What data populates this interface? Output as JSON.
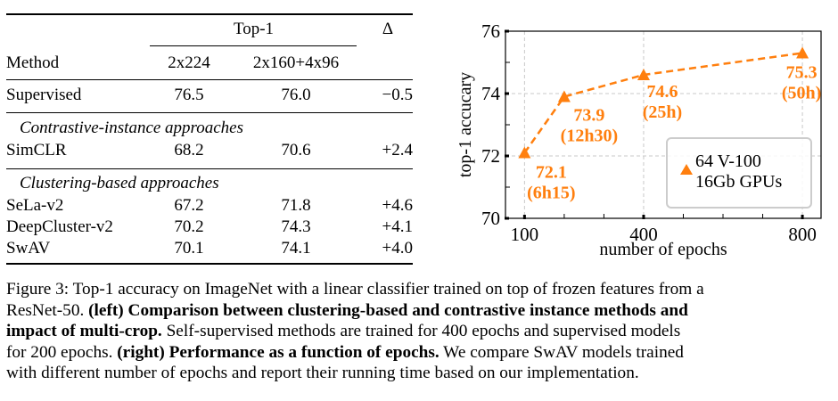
{
  "table": {
    "header_group": "Top-1",
    "delta_header": "Δ",
    "columns": [
      "Method",
      "2x224",
      "2x160+4x96"
    ],
    "supervised": {
      "method": "Supervised",
      "v1": "76.5",
      "v2": "76.0",
      "delta": "−0.5"
    },
    "sections": [
      {
        "title": "Contrastive-instance approaches",
        "rows": [
          {
            "method": "SimCLR",
            "v1": "68.2",
            "v2": "70.6",
            "delta": "+2.4"
          }
        ]
      },
      {
        "title": "Clustering-based approaches",
        "rows": [
          {
            "method": "SeLa-v2",
            "v1": "67.2",
            "v2": "71.8",
            "delta": "+4.6"
          },
          {
            "method": "DeepCluster-v2",
            "v1": "70.2",
            "v2": "74.3",
            "delta": "+4.1"
          },
          {
            "method": "SwAV",
            "v1": "70.1",
            "v2": "74.1",
            "delta": "+4.0"
          }
        ]
      }
    ]
  },
  "chart_data": {
    "type": "line",
    "title": "",
    "xlabel": "number of epochs",
    "ylabel": "top-1 accucary",
    "x": [
      100,
      200,
      400,
      800
    ],
    "series": [
      {
        "name": "64 V-100 16Gb GPUs",
        "legend_lines": [
          "64 V-100",
          "16Gb GPUs"
        ],
        "values": [
          72.1,
          73.9,
          74.6,
          75.3
        ],
        "annotations": [
          [
            "72.1",
            "(6h15)"
          ],
          [
            "73.9",
            "(12h30)"
          ],
          [
            "74.6",
            "(25h)"
          ],
          [
            "75.3",
            "(50h)"
          ]
        ],
        "color": "#ff7f0e",
        "marker": "triangle",
        "linestyle": "dashed"
      }
    ],
    "xticks": [
      100,
      400,
      800
    ],
    "xtick_labels": [
      "100",
      "400",
      "800"
    ],
    "xminor": [
      200,
      300,
      500,
      600,
      700
    ],
    "yticks": [
      70,
      72,
      74,
      76
    ],
    "ytick_labels": [
      "70",
      "72",
      "74",
      "76"
    ],
    "yminor": [
      71,
      73,
      75
    ],
    "xlim": [
      52,
      847
    ],
    "ylim": [
      70,
      76
    ],
    "grid": true,
    "legend_position": "lower-right"
  },
  "caption": {
    "line1": "Figure 3: Top-1 accuracy on ImageNet with a linear classifier trained on top of frozen features from a",
    "line2_a": "ResNet-50. ",
    "line2_b": "(left) Comparison between clustering-based and contrastive instance methods and",
    "line3_a": "impact of multi-crop.",
    "line3_b": " Self-supervised methods are trained for 400 epochs and supervised models",
    "line4_a": "for 200 epochs. ",
    "line4_b": "(right) Performance as a function of epochs.",
    "line4_c": " We compare SwAV models trained",
    "line5": "with different number of epochs and report their running time based on our implementation."
  }
}
